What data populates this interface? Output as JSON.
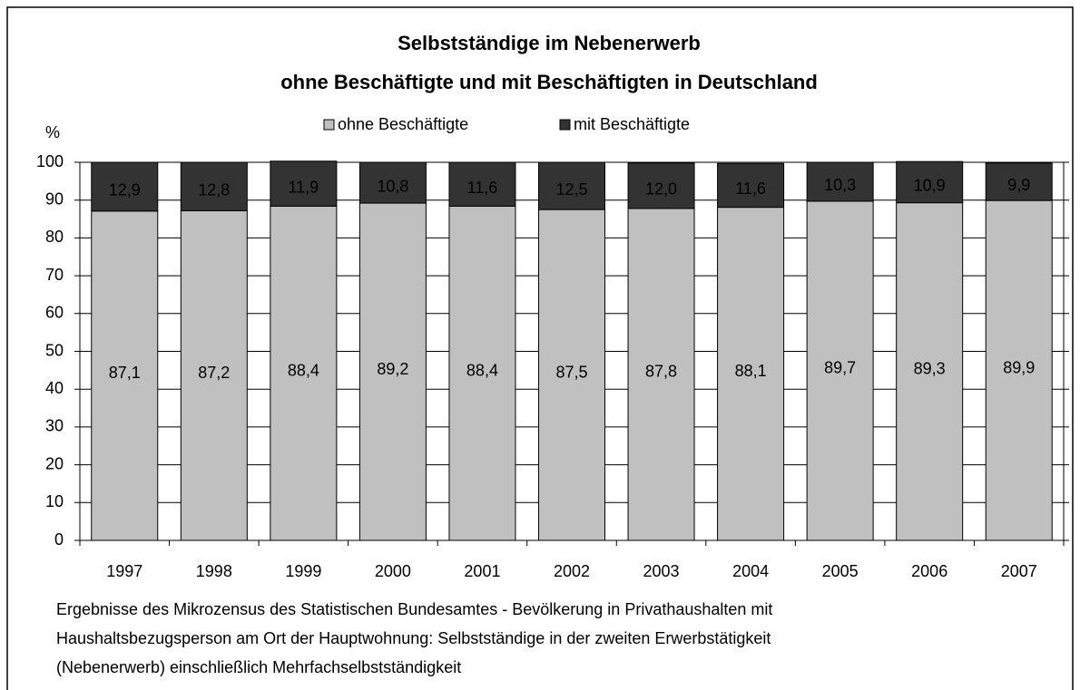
{
  "chart_data": {
    "type": "stacked_bar",
    "title": "Selbstständige im Nebenerwerb",
    "subtitle": "ohne Beschäftigte und mit Beschäftigten in Deutschland",
    "y_label": "%",
    "categories": [
      "1997",
      "1998",
      "1999",
      "2000",
      "2001",
      "2002",
      "2003",
      "2004",
      "2005",
      "2006",
      "2007"
    ],
    "series": [
      {
        "name": "ohne Beschäftigte",
        "color": "#c0c0c0",
        "label_color": "#000000",
        "values": [
          87.1,
          87.2,
          88.4,
          89.2,
          88.4,
          87.5,
          87.8,
          88.1,
          89.7,
          89.3,
          89.9
        ],
        "value_labels": [
          "87,1",
          "87,2",
          "88,4",
          "89,2",
          "88,4",
          "87,5",
          "87,8",
          "88,1",
          "89,7",
          "89,3",
          "89,9"
        ]
      },
      {
        "name": "mit Beschäftigte",
        "color": "#333333",
        "label_color": "#ffffff",
        "values": [
          12.9,
          12.8,
          11.9,
          10.8,
          11.6,
          12.5,
          12.0,
          11.6,
          10.3,
          10.9,
          9.9
        ],
        "value_labels": [
          "12,9",
          "12,8",
          "11,9",
          "10,8",
          "11,6",
          "12,5",
          "12,0",
          "11,6",
          "10,3",
          "10,9",
          "9,9"
        ]
      }
    ],
    "ylim": [
      0,
      100
    ],
    "yticks": [
      0,
      10,
      20,
      30,
      40,
      50,
      60,
      70,
      80,
      90,
      100
    ],
    "grid": true,
    "legend": "top",
    "note": [
      "Ergebnisse des Mikrozensus des Statistischen Bundesamtes - Bevölkerung in Privathaushalten mit",
      "Haushaltsbezugsperson am Ort der Hauptwohnung: Selbstständige in der zweiten Erwerbstätigkeit",
      "(Nebenerwerb) einschließlich Mehrfachselbstständigkeit"
    ]
  }
}
